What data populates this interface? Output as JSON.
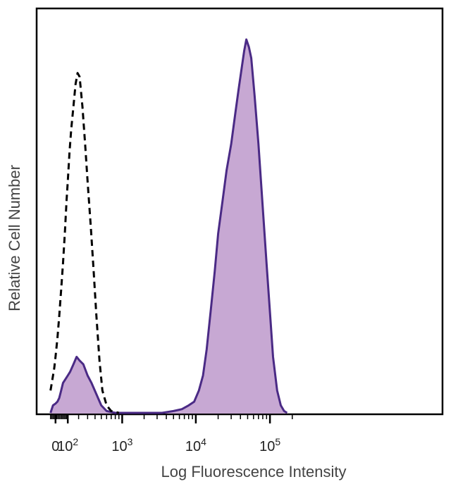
{
  "chart_data": {
    "type": "area",
    "xlabel": "Log Fluorescence Intensity",
    "ylabel": "Relative Cell Number",
    "x_scale": "biexponential",
    "xlim": [
      -50,
      200000
    ],
    "ylim": [
      0,
      100
    ],
    "x_ticks": [
      {
        "value": 0,
        "label": "0",
        "exp": ""
      },
      {
        "value": 100,
        "label": "10",
        "exp": "2"
      },
      {
        "value": 1000,
        "label": "10",
        "exp": "3"
      },
      {
        "value": 10000,
        "label": "10",
        "exp": "4"
      },
      {
        "value": 100000,
        "label": "10",
        "exp": "5"
      }
    ],
    "grid": false,
    "legend": "none",
    "colors": {
      "fill": "#c7a8d3",
      "stroke": "#4a2a85",
      "control": "#000000",
      "axis": "#000000"
    },
    "series": [
      {
        "style": "filled",
        "x": [
          -40,
          -20,
          0,
          15,
          30,
          45,
          60,
          80,
          100,
          120,
          150,
          180,
          210,
          250,
          300,
          350,
          420,
          500,
          600,
          800,
          1200,
          2000,
          3500,
          5000,
          6500,
          8000,
          9500,
          11000,
          12500,
          14000,
          16000,
          18000,
          20000,
          23000,
          26000,
          30000,
          34000,
          38000,
          42000,
          45000,
          48000,
          52000,
          56000,
          62000,
          70000,
          80000,
          90000,
          100000,
          110000,
          125000,
          140000,
          155000,
          170000
        ],
        "y": [
          0,
          2,
          2.5,
          3,
          4,
          6,
          8,
          9,
          10,
          11,
          13,
          15,
          14,
          13,
          10,
          8,
          5,
          2,
          0.5,
          0,
          0,
          0,
          0,
          0.5,
          1,
          2,
          3,
          6,
          10,
          17,
          28,
          38,
          48,
          57,
          65,
          72,
          80,
          87,
          93,
          97,
          100,
          98,
          95,
          85,
          72,
          55,
          40,
          27,
          15,
          6,
          2,
          0.5,
          0
        ]
      },
      {
        "style": "dashed",
        "x": [
          -40,
          -25,
          -10,
          0,
          15,
          30,
          45,
          60,
          75,
          90,
          100,
          115,
          130,
          150,
          170,
          190,
          210,
          240,
          270,
          300,
          340,
          380,
          420,
          470,
          520,
          600,
          700,
          900
        ],
        "y": [
          6,
          9,
          12,
          15,
          20,
          26,
          33,
          40,
          48,
          57,
          62,
          70,
          76,
          82,
          88,
          91,
          90,
          82,
          72,
          62,
          50,
          38,
          26,
          14,
          6,
          2,
          0.5,
          0
        ]
      }
    ]
  }
}
